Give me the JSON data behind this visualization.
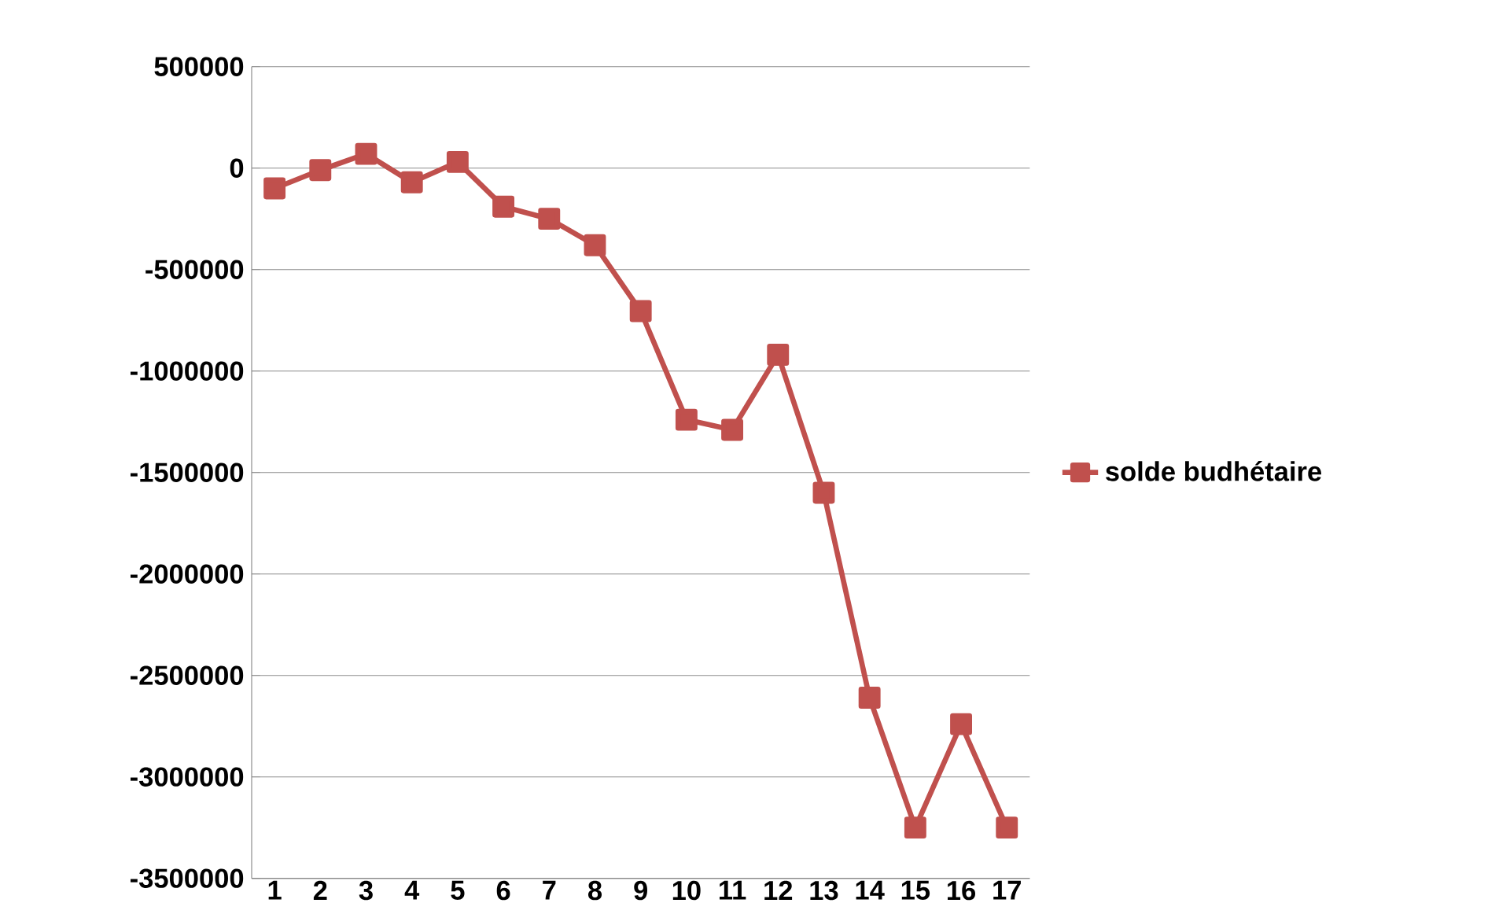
{
  "chart_data": {
    "type": "line",
    "categories": [
      "1",
      "2",
      "3",
      "4",
      "5",
      "6",
      "7",
      "8",
      "9",
      "10",
      "11",
      "12",
      "13",
      "14",
      "15",
      "16",
      "17"
    ],
    "series": [
      {
        "name": "solde budhétaire",
        "color": "#c0504d",
        "values": [
          -100000,
          -10000,
          70000,
          -70000,
          30000,
          -190000,
          -250000,
          -380000,
          -705000,
          -1240000,
          -1290000,
          -920000,
          -1600000,
          -2610000,
          -3250000,
          -2740000,
          -3250000
        ]
      }
    ],
    "ylim": [
      -3500000,
      500000
    ],
    "yticks": [
      -3500000,
      -3000000,
      -2500000,
      -2000000,
      -1500000,
      -1000000,
      -500000,
      0,
      500000
    ],
    "grid": "y",
    "legend": "right",
    "marker": "square",
    "line_style": "solid"
  }
}
